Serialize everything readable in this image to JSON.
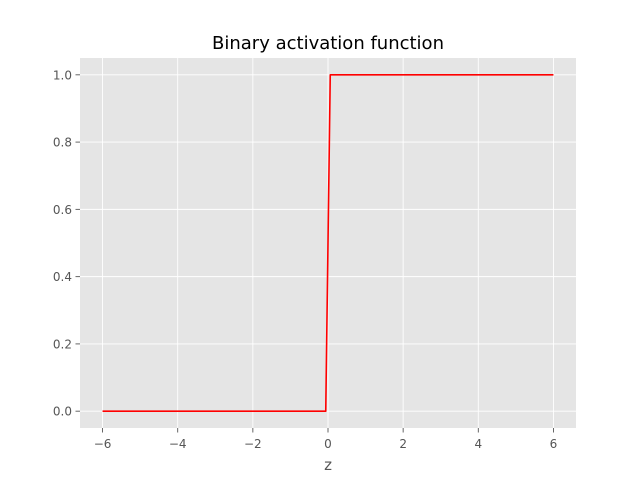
{
  "chart_data": {
    "type": "line",
    "title": "Binary activation function",
    "xlabel": "z",
    "ylabel": "",
    "xlim": [
      -6.6,
      6.6
    ],
    "ylim": [
      -0.05,
      1.05
    ],
    "x_ticks": [
      -6,
      -4,
      -2,
      0,
      2,
      4,
      6
    ],
    "x_tick_labels": [
      "−6",
      "−4",
      "−2",
      "0",
      "2",
      "4",
      "6"
    ],
    "y_ticks": [
      0.0,
      0.2,
      0.4,
      0.6,
      0.8,
      1.0
    ],
    "y_tick_labels": [
      "0.0",
      "0.2",
      "0.4",
      "0.6",
      "0.8",
      "1.0"
    ],
    "grid": true,
    "style": {
      "background": "#e5e5e5",
      "grid_color": "#ffffff",
      "line_color": "#ff0000",
      "tick_color": "#555555"
    },
    "series": [
      {
        "x": [
          -6,
          -0.06,
          0.06,
          6
        ],
        "y": [
          0,
          0,
          1,
          1
        ]
      }
    ]
  }
}
